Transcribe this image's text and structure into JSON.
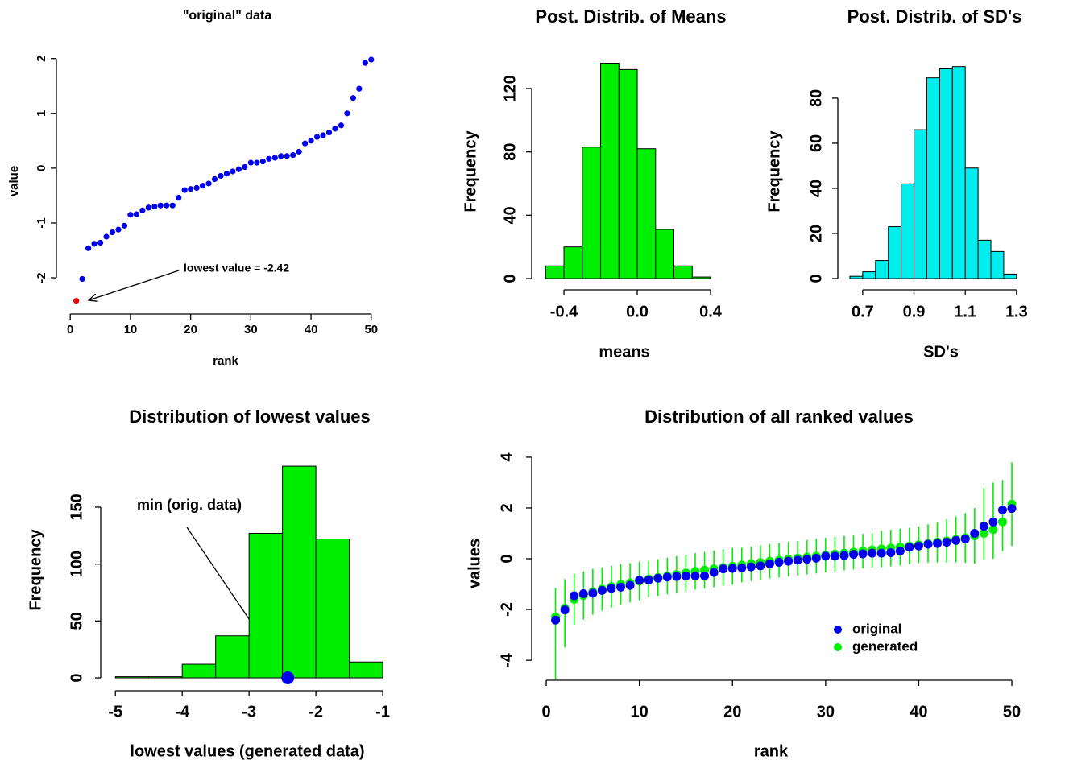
{
  "chart_data": [
    {
      "type": "scatter",
      "title": "\"original\" data",
      "x_label": "rank",
      "y_label": "value",
      "x": [
        1,
        2,
        3,
        4,
        5,
        6,
        7,
        8,
        9,
        10,
        11,
        12,
        13,
        14,
        15,
        16,
        17,
        18,
        19,
        20,
        21,
        22,
        23,
        24,
        25,
        26,
        27,
        28,
        29,
        30,
        31,
        32,
        33,
        34,
        35,
        36,
        37,
        38,
        39,
        40,
        41,
        42,
        43,
        44,
        45,
        46,
        47,
        48,
        49,
        50
      ],
      "values": [
        -2.42,
        -2.02,
        -1.46,
        -1.38,
        -1.36,
        -1.25,
        -1.17,
        -1.12,
        -1.05,
        -0.85,
        -0.84,
        -0.77,
        -0.72,
        -0.7,
        -0.68,
        -0.68,
        -0.68,
        -0.54,
        -0.4,
        -0.38,
        -0.36,
        -0.32,
        -0.28,
        -0.2,
        -0.14,
        -0.1,
        -0.06,
        -0.02,
        0.02,
        0.1,
        0.1,
        0.12,
        0.17,
        0.19,
        0.22,
        0.22,
        0.24,
        0.3,
        0.45,
        0.5,
        0.57,
        0.6,
        0.65,
        0.72,
        0.78,
        1.0,
        1.28,
        1.45,
        1.92,
        1.98
      ],
      "point_colors": [
        "#ee0000",
        "#0000ee",
        "#0000ee",
        "#0000ee",
        "#0000ee",
        "#0000ee",
        "#0000ee",
        "#0000ee",
        "#0000ee",
        "#0000ee",
        "#0000ee",
        "#0000ee",
        "#0000ee",
        "#0000ee",
        "#0000ee",
        "#0000ee",
        "#0000ee",
        "#0000ee",
        "#0000ee",
        "#0000ee",
        "#0000ee",
        "#0000ee",
        "#0000ee",
        "#0000ee",
        "#0000ee",
        "#0000ee",
        "#0000ee",
        "#0000ee",
        "#0000ee",
        "#0000ee",
        "#0000ee",
        "#0000ee",
        "#0000ee",
        "#0000ee",
        "#0000ee",
        "#0000ee",
        "#0000ee",
        "#0000ee",
        "#0000ee",
        "#0000ee",
        "#0000ee",
        "#0000ee",
        "#0000ee",
        "#0000ee",
        "#0000ee",
        "#0000ee",
        "#0000ee",
        "#0000ee",
        "#0000ee",
        "#0000ee"
      ],
      "annotation": "lowest value = -2.42",
      "xlim": [
        -2.3,
        51.9
      ],
      "ylim": [
        -2.66,
        2.26
      ],
      "xticks": [
        0,
        10,
        20,
        30,
        40,
        50
      ],
      "yticks": [
        -2,
        -1,
        0,
        1,
        2
      ]
    },
    {
      "type": "histogram",
      "title": "Post. Distrib. of Means",
      "x_label": "means",
      "y_label": "Frequency",
      "color": "#00ee00",
      "bins": [
        -0.5,
        -0.4,
        -0.3,
        -0.2,
        -0.1,
        0,
        0.1,
        0.2,
        0.3,
        0.4
      ],
      "values": [
        8,
        20,
        83,
        136,
        132,
        82,
        31,
        8,
        1
      ],
      "xlim": [
        -0.576,
        0.479
      ],
      "ylim": [
        -7.1,
        145.4
      ],
      "xticks": [
        -0.4,
        {
          "value": 0,
          "label": "0.0"
        },
        0.4
      ],
      "yticks": [
        0,
        40,
        80,
        120
      ]
    },
    {
      "type": "histogram",
      "title": "Post. Distrib. of SD's",
      "x_label": "SD's",
      "y_label": "Frequency",
      "color": "#00eeee",
      "bins": [
        0.65,
        0.7,
        0.75,
        0.8,
        0.85,
        0.9,
        0.95,
        1.0,
        1.05,
        1.1,
        1.15,
        1.2,
        1.25,
        1.3
      ],
      "values": [
        1,
        3,
        8,
        23,
        42,
        66,
        89,
        93,
        94,
        49,
        17,
        12,
        2
      ],
      "xlim": [
        0.603,
        1.357
      ],
      "ylim": [
        -5,
        102.1
      ],
      "xticks": [
        0.7,
        0.9,
        1.1,
        1.3
      ],
      "yticks": [
        0,
        20,
        40,
        60,
        80
      ]
    },
    {
      "type": "histogram",
      "title": "Distribution of lowest values",
      "x_label": "lowest values (generated data)",
      "y_label": "Frequency",
      "color": "#00ee00",
      "bins": [
        -5,
        -4.5,
        -4,
        -3.5,
        -3,
        -2.5,
        -2,
        -1.5,
        -1
      ],
      "values": [
        1,
        1,
        12,
        37,
        127,
        186,
        122,
        14
      ],
      "annotation": "min (orig. data)",
      "marker": {
        "value": -2.42,
        "color": "#0000ee"
      },
      "xlim": [
        -5.22,
        -0.82
      ],
      "ylim": [
        -11.3,
        199.5
      ],
      "xticks": [
        -5,
        -4,
        -3,
        -2,
        -1
      ],
      "yticks": [
        0,
        50,
        100,
        150
      ]
    },
    {
      "type": "errorscatter",
      "title": "Distribution of all ranked values",
      "x_label": "rank",
      "y_label": "values",
      "legend": "bottom-right",
      "x": [
        1,
        2,
        3,
        4,
        5,
        6,
        7,
        8,
        9,
        10,
        11,
        12,
        13,
        14,
        15,
        16,
        17,
        18,
        19,
        20,
        21,
        22,
        23,
        24,
        25,
        26,
        27,
        28,
        29,
        30,
        31,
        32,
        33,
        34,
        35,
        36,
        37,
        38,
        39,
        40,
        41,
        42,
        43,
        44,
        45,
        46,
        47,
        48,
        49,
        50
      ],
      "series": [
        {
          "name": "original",
          "color": "#0000ee",
          "values": [
            -2.42,
            -2.02,
            -1.46,
            -1.38,
            -1.36,
            -1.25,
            -1.17,
            -1.12,
            -1.05,
            -0.85,
            -0.84,
            -0.77,
            -0.72,
            -0.7,
            -0.68,
            -0.68,
            -0.68,
            -0.54,
            -0.4,
            -0.38,
            -0.36,
            -0.32,
            -0.28,
            -0.2,
            -0.14,
            -0.1,
            -0.06,
            -0.02,
            0.02,
            0.1,
            0.1,
            0.12,
            0.17,
            0.19,
            0.22,
            0.22,
            0.24,
            0.3,
            0.45,
            0.5,
            0.57,
            0.6,
            0.65,
            0.72,
            0.78,
            1.0,
            1.28,
            1.45,
            1.92,
            1.98
          ]
        },
        {
          "name": "generated",
          "color": "#00ee00",
          "values": [
            -2.3,
            -1.95,
            -1.6,
            -1.45,
            -1.3,
            -1.2,
            -1.1,
            -1.02,
            -0.95,
            -0.88,
            -0.8,
            -0.74,
            -0.68,
            -0.62,
            -0.56,
            -0.5,
            -0.45,
            -0.4,
            -0.35,
            -0.3,
            -0.25,
            -0.2,
            -0.15,
            -0.1,
            -0.06,
            -0.02,
            0.02,
            0.06,
            0.1,
            0.14,
            0.18,
            0.22,
            0.26,
            0.3,
            0.34,
            0.38,
            0.42,
            0.46,
            0.5,
            0.55,
            0.6,
            0.65,
            0.7,
            0.76,
            0.82,
            0.9,
            1.0,
            1.15,
            1.45,
            2.15
          ],
          "low": [
            -4.75,
            -3.5,
            -2.6,
            -2.4,
            -2.2,
            -2.05,
            -1.92,
            -1.82,
            -1.73,
            -1.64,
            -1.52,
            -1.46,
            -1.4,
            -1.34,
            -1.28,
            -1.22,
            -1.17,
            -1.12,
            -1.07,
            -1.02,
            -0.93,
            -0.88,
            -0.83,
            -0.78,
            -0.74,
            -0.7,
            -0.66,
            -0.62,
            -0.58,
            -0.54,
            -0.5,
            -0.46,
            -0.42,
            -0.38,
            -0.34,
            -0.34,
            -0.3,
            -0.26,
            -0.22,
            -0.17,
            -0.16,
            -0.15,
            -0.15,
            -0.14,
            -0.16,
            -0.2,
            -0.05,
            0.0,
            0.3,
            0.5
          ],
          "high": [
            -1.15,
            -0.8,
            -0.6,
            -0.5,
            -0.4,
            -0.35,
            -0.28,
            -0.22,
            -0.17,
            -0.12,
            -0.08,
            -0.02,
            0.04,
            0.1,
            0.16,
            0.22,
            0.27,
            0.32,
            0.37,
            0.42,
            0.43,
            0.48,
            0.53,
            0.58,
            0.62,
            0.66,
            0.7,
            0.74,
            0.78,
            0.82,
            0.86,
            0.9,
            0.94,
            0.98,
            1.02,
            1.1,
            1.14,
            1.18,
            1.22,
            1.27,
            1.36,
            1.45,
            1.55,
            1.66,
            1.8,
            2.0,
            2.8,
            3.0,
            3.1,
            3.8
          ]
        }
      ],
      "xlim": [
        -1.56,
        51.64
      ],
      "ylim": [
        -4.79,
        4.41
      ],
      "xticks": [
        0,
        10,
        20,
        30,
        40,
        50
      ],
      "yticks": [
        -4,
        -2,
        0,
        2,
        4
      ]
    }
  ]
}
